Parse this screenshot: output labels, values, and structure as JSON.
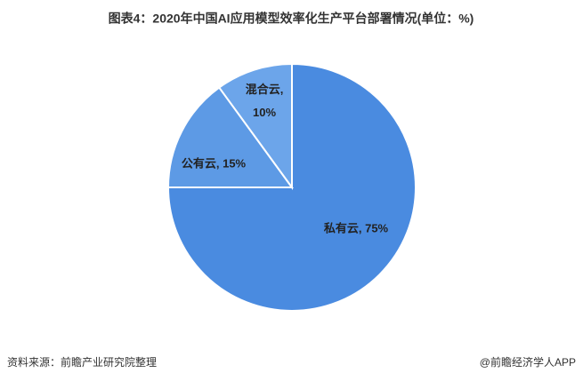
{
  "chart_data": {
    "type": "pie",
    "title": "图表4：2020年中国AI应用模型效率化生产平台部署情况(单位：%)",
    "categories": [
      "私有云",
      "公有云",
      "混合云"
    ],
    "values": [
      75,
      15,
      10
    ],
    "value_labels": [
      "私有云, 75%",
      "公有云, 15%",
      "混合云, 10%"
    ],
    "colors": [
      "#4a8be0",
      "#5d9ae5",
      "#6ca5ea"
    ]
  },
  "footer": {
    "source": "资料来源：前瞻产业研究院整理",
    "brand": "@前瞻经济学人APP"
  }
}
